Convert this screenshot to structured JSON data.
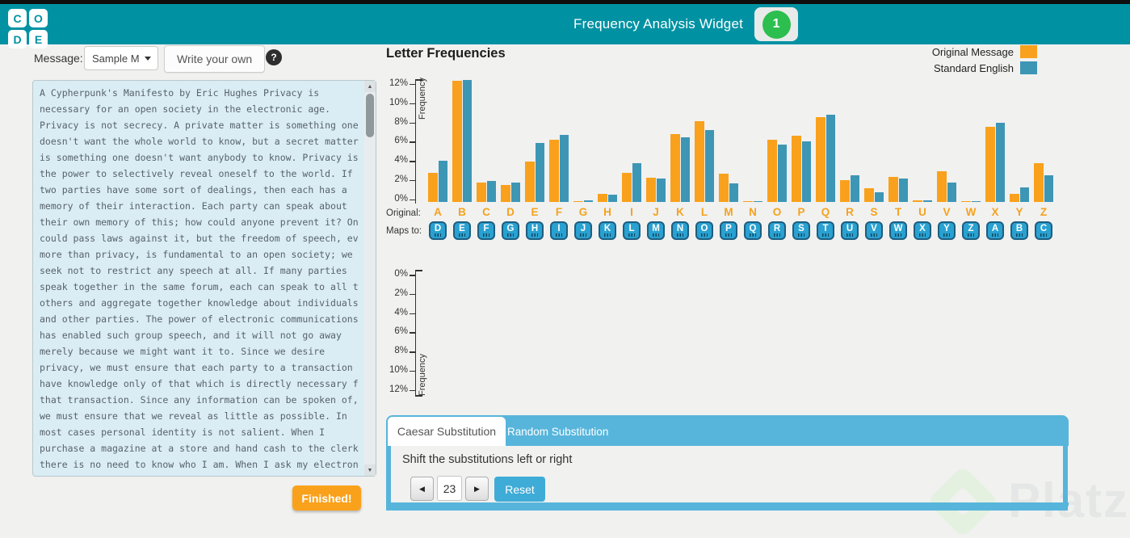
{
  "header": {
    "logo_letters": [
      "C",
      "O",
      "D",
      "E"
    ],
    "title": "Frequency Analysis Widget",
    "level_badge": "1"
  },
  "message_panel": {
    "label": "Message:",
    "dropdown_value": "Sample M",
    "write_your_own_label": "Write your own",
    "help_label": "?",
    "finished_label": "Finished!",
    "text": "A Cypherpunk's Manifesto by Eric Hughes Privacy is\nnecessary for an open society in the electronic age.\nPrivacy is not secrecy. A private matter is something one\ndoesn't want the whole world to know, but a secret matter\nis something one doesn't want anybody to know. Privacy is\nthe power to selectively reveal oneself to the world. If\ntwo parties have some sort of dealings, then each has a\nmemory of their interaction. Each party can speak about\ntheir own memory of this; how could anyone prevent it? One\ncould pass laws against it, but the freedom of speech, even\nmore than privacy, is fundamental to an open society; we\nseek not to restrict any speech at all. If many parties\nspeak together in the same forum, each can speak to all the\nothers and aggregate together knowledge about individuals\nand other parties. The power of electronic communications\nhas enabled such group speech, and it will not go away\nmerely because we might want it to. Since we desire\nprivacy, we must ensure that each party to a transaction\nhave knowledge only of that which is directly necessary for\nthat transaction. Since any information can be spoken of,\nwe must ensure that we reveal as little as possible. In\nmost cases personal identity is not salient. When I\npurchase a magazine at a store and hand cash to the clerk,\nthere is no need to know who I am. When I ask my electronic"
  },
  "charts": {
    "title": "Letter Frequencies",
    "legend": [
      {
        "label": "Original Message",
        "color": "#F9A11C"
      },
      {
        "label": "Standard English",
        "color": "#3E96B5"
      }
    ]
  },
  "chart_data": [
    {
      "type": "bar",
      "title": "Letter Frequencies",
      "ylabel": "Frequency",
      "yticks": [
        "0%",
        "2%",
        "4%",
        "6%",
        "8%",
        "10%",
        "12%"
      ],
      "ylim": [
        0,
        12.7
      ],
      "grid": false,
      "legend_position": "top-right",
      "categories": [
        "A",
        "B",
        "C",
        "D",
        "E",
        "F",
        "G",
        "H",
        "I",
        "J",
        "K",
        "L",
        "M",
        "N",
        "O",
        "P",
        "Q",
        "R",
        "S",
        "T",
        "U",
        "V",
        "W",
        "X",
        "Y",
        "Z"
      ],
      "series": [
        {
          "name": "Original Message",
          "color": "#F9A11C",
          "values": [
            3.0,
            12.6,
            2.0,
            1.75,
            4.2,
            6.5,
            0.05,
            0.85,
            3.0,
            2.55,
            7.1,
            8.4,
            2.95,
            0.07,
            6.5,
            6.9,
            8.8,
            2.3,
            1.45,
            2.6,
            0.15,
            3.2,
            0.05,
            7.8,
            0.85,
            4.0
          ]
        },
        {
          "name": "Standard English",
          "color": "#3E96B5",
          "values": [
            4.3,
            12.7,
            2.2,
            2.0,
            6.1,
            7.0,
            0.15,
            0.77,
            4.0,
            2.4,
            6.7,
            7.5,
            1.9,
            0.1,
            6.0,
            6.3,
            9.1,
            2.8,
            0.98,
            2.4,
            0.15,
            2.0,
            0.08,
            8.2,
            1.5,
            2.8
          ]
        }
      ]
    },
    {
      "type": "bar",
      "title": "",
      "ylabel": "Frequency",
      "yticks": [
        "0%",
        "2%",
        "4%",
        "6%",
        "8%",
        "10%",
        "12%"
      ],
      "ylim": [
        0,
        12.7
      ],
      "orientation": "inverted-y",
      "categories": [],
      "series": []
    }
  ],
  "mapping": {
    "original_label": "Original:",
    "maps_to_label": "Maps to:",
    "original": [
      "A",
      "B",
      "C",
      "D",
      "E",
      "F",
      "G",
      "H",
      "I",
      "J",
      "K",
      "L",
      "M",
      "N",
      "O",
      "P",
      "Q",
      "R",
      "S",
      "T",
      "U",
      "V",
      "W",
      "X",
      "Y",
      "Z"
    ],
    "maps_to": [
      "D",
      "E",
      "F",
      "G",
      "H",
      "I",
      "J",
      "K",
      "L",
      "M",
      "N",
      "O",
      "P",
      "Q",
      "R",
      "S",
      "T",
      "U",
      "V",
      "W",
      "X",
      "Y",
      "Z",
      "A",
      "B",
      "C"
    ]
  },
  "controls": {
    "tabs": [
      {
        "label": "Caesar Substitution",
        "active": true
      },
      {
        "label": "Random Substitution",
        "active": false
      }
    ],
    "instruction": "Shift the substitutions left or right",
    "shift_value": "23",
    "left_arrow": "◀",
    "right_arrow": "▶",
    "scroll_up": "▲",
    "scroll_down": "▼",
    "reset_label": "Reset"
  },
  "watermark": {
    "text": "Platzi"
  }
}
